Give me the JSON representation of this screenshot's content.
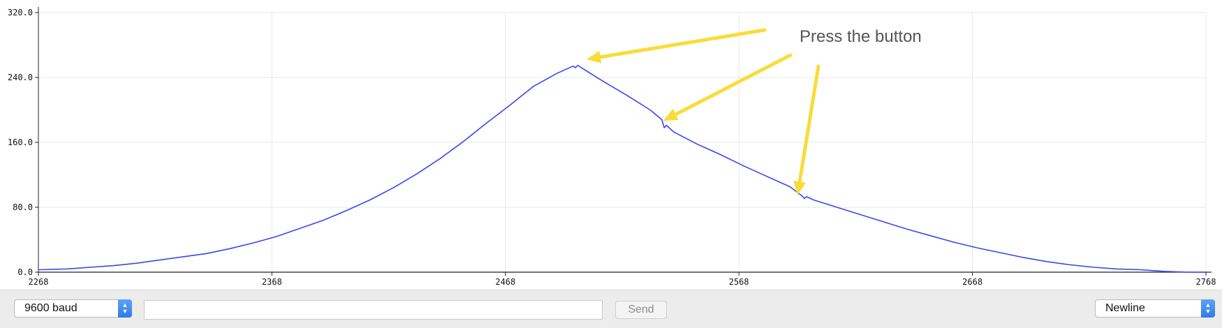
{
  "chart_data": {
    "type": "line",
    "title": "",
    "xlabel": "",
    "ylabel": "",
    "xlim": [
      2268,
      2768
    ],
    "ylim": [
      0,
      320
    ],
    "x_ticks": [
      "2268",
      "2368",
      "2468",
      "2568",
      "2668",
      "2768"
    ],
    "y_ticks": [
      "0.0",
      "80.0",
      "160.0",
      "240.0",
      "320.0"
    ],
    "grid": true,
    "line_color": "#3b46f0",
    "series": [
      {
        "x": [
          2268,
          2280,
          2290,
          2300,
          2310,
          2320,
          2330,
          2340,
          2350,
          2360,
          2370,
          2380,
          2390,
          2400,
          2410,
          2420,
          2430,
          2440,
          2450,
          2460,
          2470,
          2480,
          2490,
          2497,
          2498,
          2499,
          2500,
          2510,
          2520,
          2530,
          2535,
          2536,
          2537,
          2540,
          2550,
          2560,
          2570,
          2580,
          2590,
          2595,
          2596,
          2597,
          2600,
          2610,
          2620,
          2630,
          2640,
          2650,
          2660,
          2670,
          2680,
          2690,
          2700,
          2710,
          2720,
          2730,
          2740,
          2750,
          2760,
          2768
        ],
        "y": [
          3,
          4,
          6,
          8,
          11,
          15,
          19,
          23,
          29,
          36,
          44,
          54,
          64,
          76,
          89,
          104,
          121,
          140,
          161,
          184,
          206,
          229,
          245,
          254,
          252,
          255,
          253,
          235,
          218,
          200,
          188,
          178,
          181,
          173,
          158,
          145,
          131,
          118,
          105,
          94,
          91,
          93,
          89,
          80,
          71,
          62,
          53,
          45,
          37,
          30,
          24,
          18,
          13,
          9,
          6,
          4,
          3,
          1,
          0,
          0
        ]
      }
    ]
  },
  "annotation": {
    "text": "Press the button",
    "color": "#f8dc3a"
  },
  "controls": {
    "baud_label": "9600 baud",
    "input_value": "",
    "send_label": "Send",
    "line_ending_label": "Newline",
    "chevron_up": "▲",
    "chevron_down": "▼"
  }
}
